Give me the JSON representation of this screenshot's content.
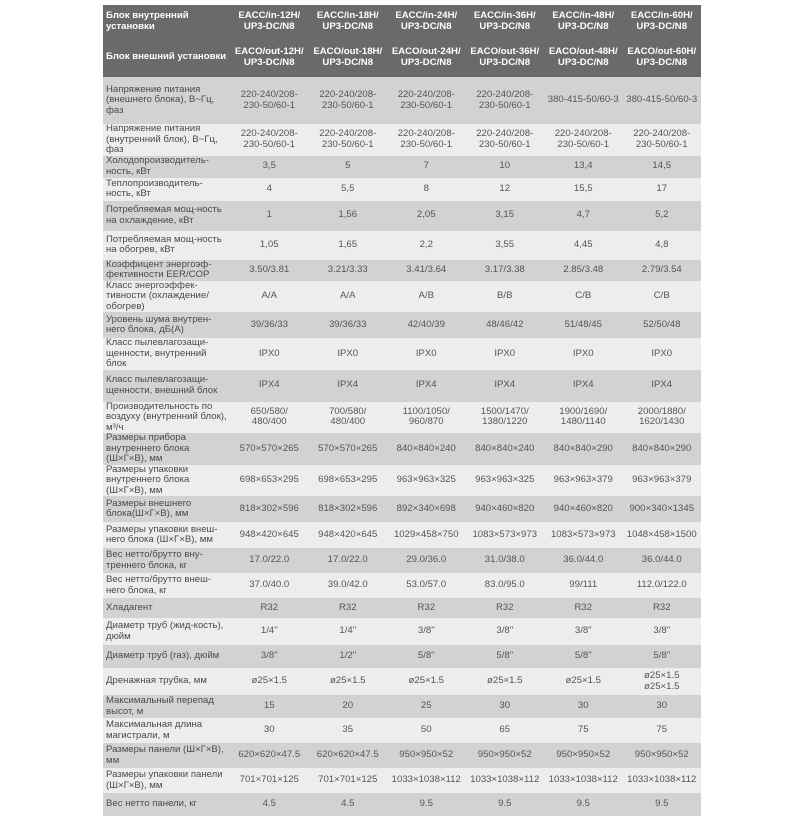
{
  "header_rows": [
    {
      "label": "Блок внутренний установки",
      "values": [
        "EACC/in-12H/\nUP3-DC/N8",
        "EACC/in-18H/\nUP3-DC/N8",
        "EACC/in-24H/\nUP3-DC/N8",
        "EACC/in-36H/\nUP3-DC/N8",
        "EACC/in-48H/\nUP3-DC/N8",
        "EACC/in-60H/\nUP3-DC/N8"
      ]
    },
    {
      "label": "Блок внешний установки",
      "values": [
        "EACO/out-12H/\nUP3-DC/N8",
        "EACO/out-18H/\nUP3-DC/N8",
        "EACO/out-24H/\nUP3-DC/N8",
        "EACO/out-36H/\nUP3-DC/N8",
        "EACO/out-48H/\nUP3-DC/N8",
        "EACO/out-60H/\nUP3-DC/N8"
      ]
    }
  ],
  "rows": [
    {
      "label": "Напряжение питания (внешнего блока), В~Гц, фаз",
      "values": [
        "220-240/208-\n230-50/60-1",
        "220-240/208-\n230-50/60-1",
        "220-240/208-\n230-50/60-1",
        "220-240/208-\n230-50/60-1",
        "380-415-50/60-3",
        "380-415-50/60-3"
      ]
    },
    {
      "label": "Напряжение питания (внутренний блок), В~Гц, фаз",
      "values": [
        "220-240/208-\n230-50/60-1",
        "220-240/208-\n230-50/60-1",
        "220-240/208-\n230-50/60-1",
        "220-240/208-\n230-50/60-1",
        "220-240/208-\n230-50/60-1",
        "220-240/208-\n230-50/60-1"
      ]
    },
    {
      "label": "Холодопроизводитель-ность, кВт",
      "values": [
        "3,5",
        "5",
        "7",
        "10",
        "13,4",
        "14,5"
      ]
    },
    {
      "label": "Теплопроизводитель-ность, кВт",
      "values": [
        "4",
        "5,5",
        "8",
        "12",
        "15,5",
        "17"
      ]
    },
    {
      "label": "Потребляемая мощ-ность на охлаждение, кВт",
      "values": [
        "1",
        "1,56",
        "2,05",
        "3,15",
        "4,7",
        "5,2"
      ]
    },
    {
      "label": "Потребляемая мощ-ность на обогрев, кВт",
      "values": [
        "1,05",
        "1,65",
        "2,2",
        "3,55",
        "4,45",
        "4,8"
      ]
    },
    {
      "label": "Коэффицент энергоэф-фективности EER/COP",
      "values": [
        "3.50/3.81",
        "3.21/3.33",
        "3.41/3.64",
        "3.17/3.38",
        "2.85/3.48",
        "2.79/3.54"
      ]
    },
    {
      "label": "Класс энергоэффек-тивности (охлаждение/ обогрев)",
      "values": [
        "A/A",
        "A/A",
        "A/B",
        "B/B",
        "C/B",
        "C/B"
      ]
    },
    {
      "label": "Уровень шума внутрен-него блока, дБ(А)",
      "values": [
        "39/36/33",
        "39/36/33",
        "42/40/39",
        "48/46/42",
        "51/48/45",
        "52/50/48"
      ]
    },
    {
      "label": "Класс пылевлагозащи-щенности, внутренний блок",
      "values": [
        "IPX0",
        "IPX0",
        "IPX0",
        "IPX0",
        "IPX0",
        "IPX0"
      ]
    },
    {
      "label": "Класс пылевлагозащи-щенности, внешний блок",
      "values": [
        "IPX4",
        "IPX4",
        "IPX4",
        "IPX4",
        "IPX4",
        "IPX4"
      ]
    },
    {
      "label": "Производительность по воздуху (внутренний блок), м³/ч",
      "values": [
        "650/580/\n480/400",
        "700/580/\n480/400",
        "1100/1050/\n960/870",
        "1500/1470/\n1380/1220",
        "1900/1690/\n1480/1140",
        "2000/1880/\n1620/1430"
      ]
    },
    {
      "label": "Размеры прибора внутреннего блока (Ш×Г×В), мм",
      "values": [
        "570×570×265",
        "570×570×265",
        "840×840×240",
        "840×840×240",
        "840×840×290",
        "840×840×290"
      ]
    },
    {
      "label": "Размеры упаковки внутреннего блока (Ш×Г×В), мм",
      "values": [
        "698×653×295",
        "698×653×295",
        "963×963×325",
        "963×963×325",
        "963×963×379",
        "963×963×379"
      ]
    },
    {
      "label": "Размеры внешнего блока(Ш×Г×В), мм",
      "values": [
        "818×302×596",
        "818×302×596",
        "892×340×698",
        "940×460×820",
        "940×460×820",
        "900×340×1345"
      ]
    },
    {
      "label": "Размеры упаковки внеш-него блока (Ш×Г×В), мм",
      "values": [
        "948×420×645",
        "948×420×645",
        "1029×458×750",
        "1083×573×973",
        "1083×573×973",
        "1048×458×1500"
      ]
    },
    {
      "label": "Вес нетто/брутто вну-треннего блока, кг",
      "values": [
        "17.0/22.0",
        "17.0/22.0",
        "29.0/36.0",
        "31.0/38.0",
        "36.0/44.0",
        "36.0/44.0"
      ]
    },
    {
      "label": "Вес нетто/брутто внеш-него блока, кг",
      "values": [
        "37.0/40.0",
        "39.0/42.0",
        "53.0/57.0",
        "83.0/95.0",
        "99/111",
        "112.0/122.0"
      ]
    },
    {
      "label": "Хладагент",
      "values": [
        "R32",
        "R32",
        "R32",
        "R32",
        "R32",
        "R32"
      ]
    },
    {
      "label": "Диаметр труб (жид-кость), дюйм",
      "values": [
        "1/4\"",
        "1/4\"",
        "3/8\"",
        "3/8\"",
        "3/8\"",
        "3/8\""
      ]
    },
    {
      "label": "Диаметр труб (газ), дюйм",
      "values": [
        "3/8\"",
        "1/2\"",
        "5/8\"",
        "5/8\"",
        "5/8\"",
        "5/8\""
      ]
    },
    {
      "label": "Дренажная трубка, мм",
      "values": [
        "ø25×1.5",
        "ø25×1.5",
        "ø25×1.5",
        "ø25×1.5",
        "ø25×1.5",
        "ø25×1.5\nø25×1.5"
      ]
    },
    {
      "label": "Максимальный перепад высот, м",
      "values": [
        "15",
        "20",
        "25",
        "30",
        "30",
        "30"
      ]
    },
    {
      "label": "Максимальная длина магистрали, м",
      "values": [
        "30",
        "35",
        "50",
        "65",
        "75",
        "75"
      ]
    },
    {
      "label": "Размеры панели (Ш×Г×В), мм",
      "values": [
        "620×620×47.5",
        "620×620×47.5",
        "950×950×52",
        "950×950×52",
        "950×950×52",
        "950×950×52"
      ]
    },
    {
      "label": "Размеры упаковки панели (Ш×Г×В), мм",
      "values": [
        "701×701×125",
        "701×701×125",
        "1033×1038×112",
        "1033×1038×112",
        "1033×1038×112",
        "1033×1038×112"
      ]
    },
    {
      "label": "Вес нетто панели, кг",
      "values": [
        "4.5",
        "4.5",
        "9.5",
        "9.5",
        "9.5",
        "9.5"
      ]
    }
  ],
  "colors": {
    "header_bg": "#6a6a6a",
    "row_dark": "#d2d2d2",
    "row_light": "#ededed"
  }
}
